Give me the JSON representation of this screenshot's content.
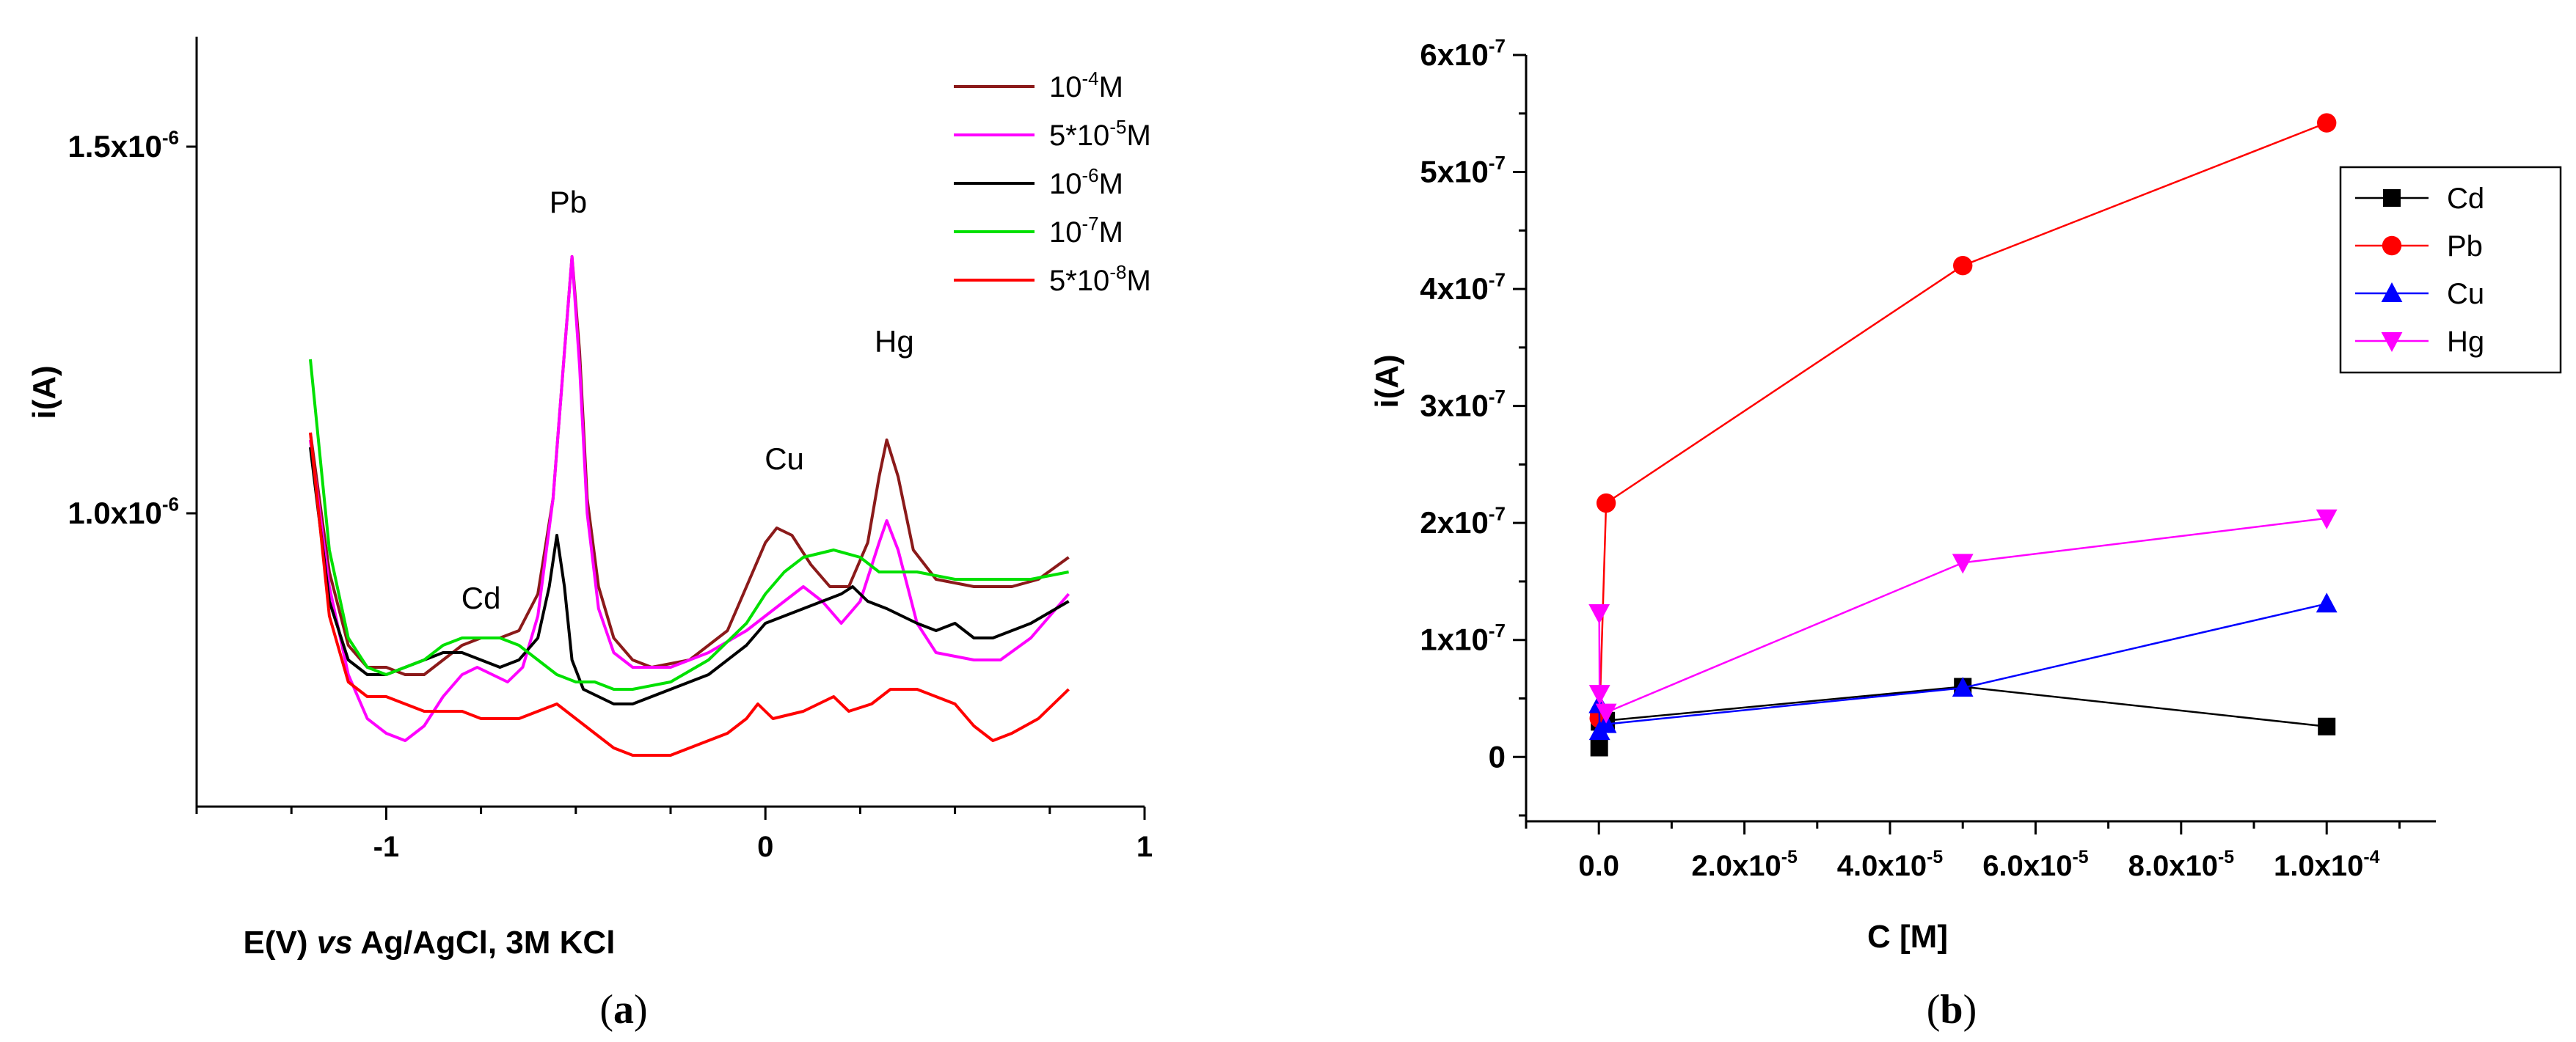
{
  "chart_data": [
    {
      "panel": "a",
      "type": "line",
      "caption": {
        "open": "(",
        "letter": "a",
        "close": ")"
      },
      "xlabel": {
        "p1": "E(V) ",
        "p2": "vs",
        "p3": " Ag/AgCl, 3M KCl"
      },
      "ylabel": "i(A)",
      "xlim": [
        -1.5,
        1.0
      ],
      "ylim": [
        6e-07,
        1.65e-06
      ],
      "xticks": [
        -1,
        0,
        1
      ],
      "xtick_labels": [
        "-1",
        "0",
        "1"
      ],
      "yticks": [
        {
          "value": 1e-06,
          "mant": "1.0x10",
          "exp": "-6"
        },
        {
          "value": 1.5e-06,
          "mant": "1.5x10",
          "exp": "-6"
        }
      ],
      "annotations": [
        {
          "text": "Cd",
          "x": -0.75,
          "y": 8.7e-07
        },
        {
          "text": "Pb",
          "x": -0.52,
          "y": 1.41e-06
        },
        {
          "text": "Cu",
          "x": 0.05,
          "y": 1.06e-06
        },
        {
          "text": "Hg",
          "x": 0.34,
          "y": 1.22e-06
        }
      ],
      "legend": {
        "position": "top-right"
      },
      "series": [
        {
          "name_pre": "10",
          "name_exp": "-4",
          "name_post": "M",
          "color": "#8b1a1a",
          "points": [
            [
              -1.2,
              1.11e-06
            ],
            [
              -1.15,
              9.2e-07
            ],
            [
              -1.1,
              8.2e-07
            ],
            [
              -1.05,
              7.9e-07
            ],
            [
              -1.0,
              7.9e-07
            ],
            [
              -0.95,
              7.8e-07
            ],
            [
              -0.9,
              7.8e-07
            ],
            [
              -0.85,
              8e-07
            ],
            [
              -0.8,
              8.2e-07
            ],
            [
              -0.75,
              8.3e-07
            ],
            [
              -0.7,
              8.3e-07
            ],
            [
              -0.65,
              8.4e-07
            ],
            [
              -0.6,
              8.9e-07
            ],
            [
              -0.56,
              1.02e-06
            ],
            [
              -0.53,
              1.22e-06
            ],
            [
              -0.51,
              1.35e-06
            ],
            [
              -0.49,
              1.22e-06
            ],
            [
              -0.47,
              1.02e-06
            ],
            [
              -0.44,
              9e-07
            ],
            [
              -0.4,
              8.3e-07
            ],
            [
              -0.35,
              8e-07
            ],
            [
              -0.3,
              7.9e-07
            ],
            [
              -0.2,
              8e-07
            ],
            [
              -0.1,
              8.4e-07
            ],
            [
              -0.05,
              9e-07
            ],
            [
              0.0,
              9.6e-07
            ],
            [
              0.03,
              9.8e-07
            ],
            [
              0.07,
              9.7e-07
            ],
            [
              0.12,
              9.3e-07
            ],
            [
              0.17,
              9e-07
            ],
            [
              0.22,
              9e-07
            ],
            [
              0.27,
              9.6e-07
            ],
            [
              0.3,
              1.05e-06
            ],
            [
              0.32,
              1.1e-06
            ],
            [
              0.35,
              1.05e-06
            ],
            [
              0.39,
              9.5e-07
            ],
            [
              0.45,
              9.1e-07
            ],
            [
              0.55,
              9e-07
            ],
            [
              0.65,
              9e-07
            ],
            [
              0.72,
              9.1e-07
            ],
            [
              0.8,
              9.4e-07
            ]
          ]
        },
        {
          "name_pre": "5*10",
          "name_exp": "-5",
          "name_post": "M",
          "color": "#ff00ff",
          "points": [
            [
              -1.2,
              1.1e-06
            ],
            [
              -1.15,
              9e-07
            ],
            [
              -1.1,
              7.8e-07
            ],
            [
              -1.05,
              7.2e-07
            ],
            [
              -1.0,
              7e-07
            ],
            [
              -0.95,
              6.9e-07
            ],
            [
              -0.9,
              7.1e-07
            ],
            [
              -0.85,
              7.5e-07
            ],
            [
              -0.8,
              7.8e-07
            ],
            [
              -0.76,
              7.9e-07
            ],
            [
              -0.72,
              7.8e-07
            ],
            [
              -0.68,
              7.7e-07
            ],
            [
              -0.64,
              7.9e-07
            ],
            [
              -0.6,
              8.6e-07
            ],
            [
              -0.56,
              1.02e-06
            ],
            [
              -0.53,
              1.22e-06
            ],
            [
              -0.51,
              1.35e-06
            ],
            [
              -0.49,
              1.2e-06
            ],
            [
              -0.47,
              1e-06
            ],
            [
              -0.44,
              8.7e-07
            ],
            [
              -0.4,
              8.1e-07
            ],
            [
              -0.35,
              7.9e-07
            ],
            [
              -0.25,
              7.9e-07
            ],
            [
              -0.15,
              8.1e-07
            ],
            [
              -0.05,
              8.4e-07
            ],
            [
              0.05,
              8.8e-07
            ],
            [
              0.1,
              9e-07
            ],
            [
              0.15,
              8.8e-07
            ],
            [
              0.2,
              8.5e-07
            ],
            [
              0.25,
              8.8e-07
            ],
            [
              0.3,
              9.6e-07
            ],
            [
              0.32,
              9.9e-07
            ],
            [
              0.35,
              9.5e-07
            ],
            [
              0.4,
              8.5e-07
            ],
            [
              0.45,
              8.1e-07
            ],
            [
              0.55,
              8e-07
            ],
            [
              0.62,
              8e-07
            ],
            [
              0.7,
              8.3e-07
            ],
            [
              0.8,
              8.9e-07
            ]
          ]
        },
        {
          "name_pre": "10",
          "name_exp": "-6",
          "name_post": "M",
          "color": "#000000",
          "points": [
            [
              -1.2,
              1.09e-06
            ],
            [
              -1.15,
              8.8e-07
            ],
            [
              -1.1,
              8e-07
            ],
            [
              -1.05,
              7.8e-07
            ],
            [
              -1.0,
              7.8e-07
            ],
            [
              -0.95,
              7.9e-07
            ],
            [
              -0.9,
              8e-07
            ],
            [
              -0.85,
              8.1e-07
            ],
            [
              -0.8,
              8.1e-07
            ],
            [
              -0.75,
              8e-07
            ],
            [
              -0.7,
              7.9e-07
            ],
            [
              -0.65,
              8e-07
            ],
            [
              -0.6,
              8.3e-07
            ],
            [
              -0.57,
              9e-07
            ],
            [
              -0.55,
              9.7e-07
            ],
            [
              -0.53,
              9e-07
            ],
            [
              -0.51,
              8e-07
            ],
            [
              -0.48,
              7.6e-07
            ],
            [
              -0.44,
              7.5e-07
            ],
            [
              -0.4,
              7.4e-07
            ],
            [
              -0.35,
              7.4e-07
            ],
            [
              -0.3,
              7.5e-07
            ],
            [
              -0.25,
              7.6e-07
            ],
            [
              -0.15,
              7.8e-07
            ],
            [
              -0.05,
              8.2e-07
            ],
            [
              0.0,
              8.5e-07
            ],
            [
              0.1,
              8.7e-07
            ],
            [
              0.2,
              8.9e-07
            ],
            [
              0.23,
              9e-07
            ],
            [
              0.27,
              8.8e-07
            ],
            [
              0.32,
              8.7e-07
            ],
            [
              0.4,
              8.5e-07
            ],
            [
              0.45,
              8.4e-07
            ],
            [
              0.5,
              8.5e-07
            ],
            [
              0.55,
              8.3e-07
            ],
            [
              0.6,
              8.3e-07
            ],
            [
              0.7,
              8.5e-07
            ],
            [
              0.8,
              8.8e-07
            ]
          ]
        },
        {
          "name_pre": "10",
          "name_exp": "-7",
          "name_post": "M",
          "color": "#00e000",
          "points": [
            [
              -1.2,
              1.21e-06
            ],
            [
              -1.15,
              9.5e-07
            ],
            [
              -1.1,
              8.3e-07
            ],
            [
              -1.05,
              7.9e-07
            ],
            [
              -1.0,
              7.8e-07
            ],
            [
              -0.95,
              7.9e-07
            ],
            [
              -0.9,
              8e-07
            ],
            [
              -0.85,
              8.2e-07
            ],
            [
              -0.8,
              8.3e-07
            ],
            [
              -0.75,
              8.3e-07
            ],
            [
              -0.7,
              8.3e-07
            ],
            [
              -0.65,
              8.2e-07
            ],
            [
              -0.6,
              8e-07
            ],
            [
              -0.55,
              7.8e-07
            ],
            [
              -0.5,
              7.7e-07
            ],
            [
              -0.45,
              7.7e-07
            ],
            [
              -0.4,
              7.6e-07
            ],
            [
              -0.35,
              7.6e-07
            ],
            [
              -0.25,
              7.7e-07
            ],
            [
              -0.15,
              8e-07
            ],
            [
              -0.05,
              8.5e-07
            ],
            [
              0.0,
              8.9e-07
            ],
            [
              0.05,
              9.2e-07
            ],
            [
              0.1,
              9.4e-07
            ],
            [
              0.18,
              9.5e-07
            ],
            [
              0.25,
              9.4e-07
            ],
            [
              0.3,
              9.2e-07
            ],
            [
              0.4,
              9.2e-07
            ],
            [
              0.5,
              9.1e-07
            ],
            [
              0.6,
              9.1e-07
            ],
            [
              0.7,
              9.1e-07
            ],
            [
              0.8,
              9.2e-07
            ]
          ]
        },
        {
          "name_pre": "5*10",
          "name_exp": "-8",
          "name_post": "M",
          "color": "#ff0000",
          "points": [
            [
              -1.2,
              1.11e-06
            ],
            [
              -1.15,
              8.6e-07
            ],
            [
              -1.1,
              7.7e-07
            ],
            [
              -1.05,
              7.5e-07
            ],
            [
              -1.0,
              7.5e-07
            ],
            [
              -0.95,
              7.4e-07
            ],
            [
              -0.9,
              7.3e-07
            ],
            [
              -0.85,
              7.3e-07
            ],
            [
              -0.8,
              7.3e-07
            ],
            [
              -0.75,
              7.2e-07
            ],
            [
              -0.7,
              7.2e-07
            ],
            [
              -0.65,
              7.2e-07
            ],
            [
              -0.6,
              7.3e-07
            ],
            [
              -0.55,
              7.4e-07
            ],
            [
              -0.5,
              7.2e-07
            ],
            [
              -0.45,
              7e-07
            ],
            [
              -0.4,
              6.8e-07
            ],
            [
              -0.35,
              6.7e-07
            ],
            [
              -0.3,
              6.7e-07
            ],
            [
              -0.25,
              6.7e-07
            ],
            [
              -0.2,
              6.8e-07
            ],
            [
              -0.1,
              7e-07
            ],
            [
              -0.05,
              7.2e-07
            ],
            [
              -0.02,
              7.4e-07
            ],
            [
              0.02,
              7.2e-07
            ],
            [
              0.1,
              7.3e-07
            ],
            [
              0.18,
              7.5e-07
            ],
            [
              0.22,
              7.3e-07
            ],
            [
              0.28,
              7.4e-07
            ],
            [
              0.33,
              7.6e-07
            ],
            [
              0.4,
              7.6e-07
            ],
            [
              0.45,
              7.5e-07
            ],
            [
              0.5,
              7.4e-07
            ],
            [
              0.55,
              7.1e-07
            ],
            [
              0.6,
              6.9e-07
            ],
            [
              0.65,
              7e-07
            ],
            [
              0.72,
              7.2e-07
            ],
            [
              0.8,
              7.6e-07
            ]
          ]
        }
      ]
    },
    {
      "panel": "b",
      "type": "line",
      "caption": {
        "open": "(",
        "letter": "b",
        "close": ")"
      },
      "xlabel": "C [M]",
      "ylabel": "i(A)",
      "xlim": [
        -1e-05,
        0.000115
      ],
      "ylim": [
        -5.5e-08,
        6e-07
      ],
      "xticks": [
        {
          "value": 0,
          "mant": "0.0",
          "exp": ""
        },
        {
          "value": 2e-05,
          "mant": "2.0x10",
          "exp": "-5"
        },
        {
          "value": 4e-05,
          "mant": "4.0x10",
          "exp": "-5"
        },
        {
          "value": 6e-05,
          "mant": "6.0x10",
          "exp": "-5"
        },
        {
          "value": 8e-05,
          "mant": "8.0x10",
          "exp": "-5"
        },
        {
          "value": 0.0001,
          "mant": "1.0x10",
          "exp": "-4"
        }
      ],
      "yticks": [
        {
          "value": 0,
          "mant": "0",
          "exp": ""
        },
        {
          "value": 1e-07,
          "mant": "1x10",
          "exp": "-7"
        },
        {
          "value": 2e-07,
          "mant": "2x10",
          "exp": "-7"
        },
        {
          "value": 3e-07,
          "mant": "3x10",
          "exp": "-7"
        },
        {
          "value": 4e-07,
          "mant": "4x10",
          "exp": "-7"
        },
        {
          "value": 5e-07,
          "mant": "5x10",
          "exp": "-7"
        },
        {
          "value": 6e-07,
          "mant": "6x10",
          "exp": "-7"
        }
      ],
      "legend": {
        "position": "top-right"
      },
      "x": [
        5e-08,
        1e-07,
        1e-06,
        5e-05,
        0.0001
      ],
      "series": [
        {
          "name": "Cd",
          "color": "#000000",
          "marker": "square",
          "values": [
            8e-09,
            3e-08,
            3.1e-08,
            6e-08,
            2.6e-08
          ]
        },
        {
          "name": "Pb",
          "color": "#ff0000",
          "marker": "circle",
          "values": [
            3.3e-08,
            3.6e-08,
            2.17e-07,
            4.2e-07,
            5.42e-07
          ]
        },
        {
          "name": "Cu",
          "color": "#0000ff",
          "marker": "triangle-up",
          "values": [
            4.5e-08,
            2.2e-08,
            2.8e-08,
            5.9e-08,
            1.31e-07
          ]
        },
        {
          "name": "Hg",
          "color": "#ff00ff",
          "marker": "triangle-down",
          "values": [
            1.23e-07,
            5.4e-08,
            3.8e-08,
            1.66e-07,
            2.04e-07
          ]
        }
      ]
    }
  ]
}
